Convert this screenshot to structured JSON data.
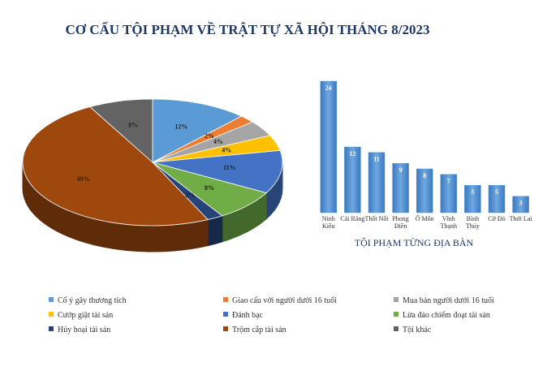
{
  "chart_data": [
    {
      "type": "pie",
      "title": "CƠ CẤU TỘI PHẠM VỀ TRẬT TỰ XÃ HỘI THÁNG 8/2023",
      "categories": [
        "Cố ý gây thương tích",
        "Giao cấu với người dưới 16 tuổi",
        "Mua bán người dưới 16 tuổi",
        "Cướp giật tài sản",
        "Đánh bạc",
        "Lừa đảo chiếm đoạt tài sản",
        "Hủy hoại tài sản",
        "Trộm cắp tài sản",
        "Tội khác"
      ],
      "values": [
        12,
        2,
        4,
        4,
        11,
        8,
        2,
        49,
        8
      ],
      "value_labels": [
        "12%",
        "2%",
        "4%",
        "4%",
        "11%",
        "8%",
        "2%",
        "49%",
        "8%"
      ],
      "colors": [
        "#5b9bd5",
        "#ed7d31",
        "#a5a5a5",
        "#ffc000",
        "#4472c4",
        "#70ad47",
        "#264478",
        "#9e480e",
        "#636363"
      ]
    },
    {
      "type": "bar",
      "title": "TỘI PHẠM TỪNG ĐỊA BÀN",
      "categories": [
        "Ninh Kiều",
        "Cái Răng",
        "Thốt Nốt",
        "Phong Điền",
        "Ô Môn",
        "Vĩnh Thạnh",
        "Bình Thủy",
        "Cờ Đỏ",
        "Thới Lai"
      ],
      "values": [
        24,
        12,
        11,
        9,
        8,
        7,
        5,
        5,
        3
      ],
      "color": "#5b9bd5"
    }
  ]
}
